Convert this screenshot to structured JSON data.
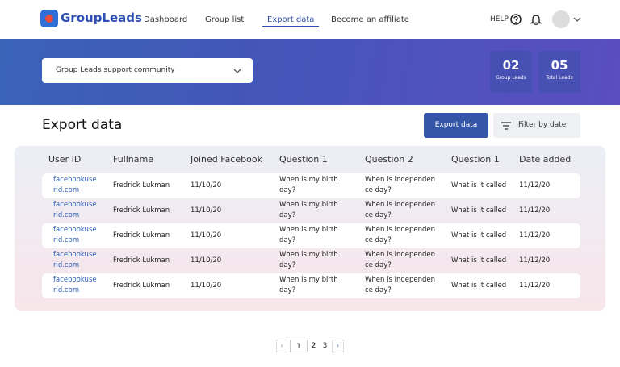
{
  "header": {
    "logo": "GroupLeads",
    "nav": [
      "Dashboard",
      "Group list",
      "Export data",
      "Become an affiliate"
    ],
    "help": "HELP"
  },
  "banner": {
    "dropdown": "Group Leads support community",
    "stats": [
      {
        "value": "02",
        "label": "Group Leads"
      },
      {
        "value": "05",
        "label": "Total Leads"
      }
    ]
  },
  "page": {
    "title": "Export data",
    "export_button": "Export data",
    "filter_button": "Filter by date"
  },
  "table": {
    "columns": [
      "User ID",
      "Fullname",
      "Joined Facebook",
      "Question 1",
      "Question 2",
      "Question 1",
      "Date added"
    ],
    "rows": [
      [
        "facebookuserid.com",
        "Fredrick Lukman",
        "11/10/20",
        "When is my birth day?",
        "When is independence day?",
        "What is it called",
        "11/12/20"
      ],
      [
        "facebookuserid.com",
        "Fredrick Lukman",
        "11/10/20",
        "When is my birth day?",
        "When is independence day?",
        "What is it called",
        "11/12/20"
      ],
      [
        "facebookuserid.com",
        "Fredrick Lukman",
        "11/10/20",
        "When is my birth day?",
        "When is independence day?",
        "What is it called",
        "11/12/20"
      ],
      [
        "facebookuserid.com",
        "Fredrick Lukman",
        "11/10/20",
        "When is my birth day?",
        "When is independence day?",
        "What is it called",
        "11/12/20"
      ],
      [
        "facebookuserid.com",
        "Fredrick Lukman",
        "11/10/20",
        "When is my birth day?",
        "When is independence day?",
        "What is it called",
        "11/12/20"
      ]
    ]
  },
  "pagination": {
    "pages": [
      "1",
      "2",
      "3"
    ]
  }
}
